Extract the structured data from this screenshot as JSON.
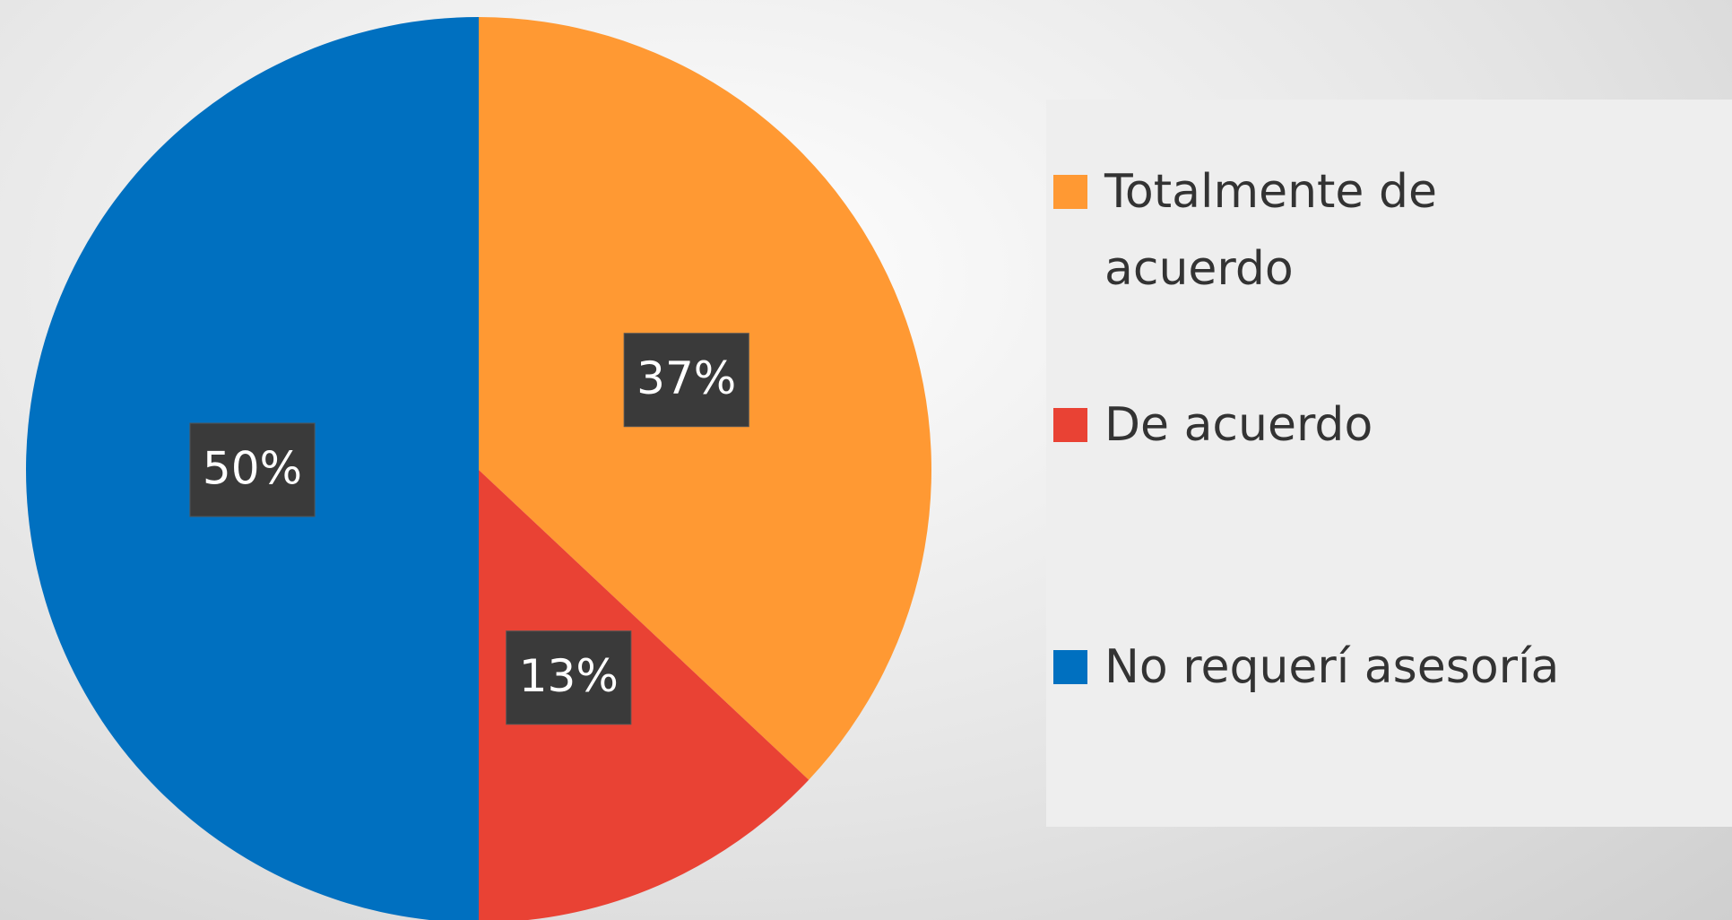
{
  "chart_data": {
    "type": "pie",
    "categories": [
      "Totalmente de acuerdo",
      "De acuerdo",
      "No requerí asesoría"
    ],
    "values": [
      37,
      13,
      50
    ],
    "value_labels": [
      "37%",
      "13%",
      "50%"
    ],
    "colors": [
      "#ff9933",
      "#e94234",
      "#0070c0"
    ]
  }
}
